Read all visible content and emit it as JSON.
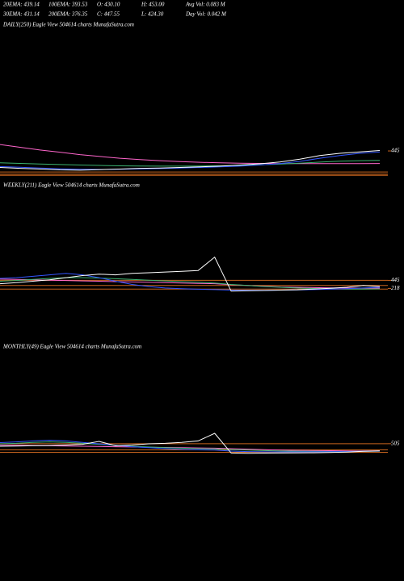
{
  "header": {
    "stats": [
      [
        "20EMA: 439.14",
        "100EMA: 393.53",
        "O: 430.10",
        "H: 453.00",
        "Avg Vol: 0.083 M"
      ],
      [
        "30EMA: 431.14",
        "200EMA: 376.35",
        "C: 447.55",
        "L: 424.30",
        "Day Vol: 0.042 M"
      ]
    ]
  },
  "chart_data": [
    {
      "type": "line",
      "title": "DAILY(250) Eagle  View  504614  charts MunafaSutra.com",
      "ylim": [
        300,
        520
      ],
      "yticks": [
        445
      ],
      "levels": [
        330,
        318,
        312
      ],
      "series": [
        {
          "color": "#ff66cc",
          "values": [
            480,
            465,
            450,
            438,
            425,
            415,
            405,
            398,
            392,
            387,
            383,
            380,
            378,
            377,
            376,
            376,
            376,
            376,
            376,
            376.35
          ]
        },
        {
          "color": "#3cb371",
          "values": [
            380,
            377,
            374,
            371,
            368,
            366,
            364,
            363,
            362,
            362,
            363,
            364,
            366,
            369,
            373,
            378,
            384,
            389,
            392,
            393.53
          ]
        },
        {
          "color": "#3355ff",
          "values": [
            360,
            356,
            352,
            348,
            345,
            344,
            345,
            347,
            349,
            352,
            355,
            358,
            362,
            368,
            376,
            388,
            405,
            420,
            432,
            439.14
          ]
        },
        {
          "color": "#ffffff",
          "values": [
            355,
            350,
            346,
            342,
            340,
            343,
            346,
            350,
            352,
            355,
            358,
            362,
            368,
            375,
            385,
            400,
            420,
            432,
            440,
            447.55
          ]
        }
      ]
    },
    {
      "type": "line",
      "title": "WEEKLY(211) Eagle  View  504614  charts MunafaSutra.com",
      "ylim": [
        0,
        1500
      ],
      "yticks": [
        445,
        218
      ],
      "levels": [
        445,
        300,
        200
      ],
      "series": [
        {
          "color": "#ff66cc",
          "values": [
            480,
            470,
            460,
            450,
            440,
            430,
            420,
            410,
            400,
            390,
            380,
            370,
            360,
            350,
            320,
            300,
            280,
            260,
            250,
            240,
            235,
            230,
            228,
            226
          ]
        },
        {
          "color": "#3cb371",
          "values": [
            420,
            440,
            470,
            500,
            520,
            520,
            510,
            490,
            470,
            450,
            430,
            410,
            390,
            370,
            330,
            300,
            270,
            250,
            230,
            215,
            205,
            200,
            200,
            205
          ]
        },
        {
          "color": "#3355ff",
          "values": [
            500,
            520,
            560,
            600,
            640,
            600,
            520,
            420,
            330,
            270,
            230,
            210,
            195,
            185,
            170,
            165,
            165,
            170,
            175,
            185,
            195,
            210,
            230,
            250
          ]
        },
        {
          "color": "#ffffff",
          "values": [
            350,
            380,
            420,
            460,
            520,
            580,
            620,
            600,
            640,
            660,
            680,
            700,
            720,
            1100,
            140,
            150,
            160,
            170,
            180,
            200,
            220,
            250,
            300,
            270
          ]
        }
      ]
    },
    {
      "type": "line",
      "title": "MONTHLY(49) Eagle  View  504614  charts MunafaSutra.com",
      "ylim": [
        0,
        1500
      ],
      "yticks": [
        505
      ],
      "levels": [
        505,
        250,
        150
      ],
      "series": [
        {
          "color": "#ff66cc",
          "values": [
            450,
            440,
            430,
            420,
            410,
            400,
            390,
            380,
            370,
            360,
            350,
            340,
            330,
            320,
            300,
            280,
            260,
            240,
            230,
            220,
            215,
            210,
            208,
            206
          ]
        },
        {
          "color": "#3cb371",
          "values": [
            500,
            520,
            560,
            580,
            560,
            520,
            480,
            440,
            400,
            370,
            340,
            320,
            300,
            290,
            260,
            240,
            220,
            205,
            195,
            190,
            185,
            185,
            190,
            195
          ]
        },
        {
          "color": "#3355ff",
          "values": [
            550,
            580,
            620,
            650,
            620,
            560,
            500,
            440,
            380,
            340,
            300,
            270,
            250,
            240,
            200,
            180,
            170,
            165,
            165,
            170,
            175,
            180,
            190,
            200
          ]
        },
        {
          "color": "#ffffff",
          "values": [
            400,
            410,
            420,
            430,
            450,
            480,
            600,
            420,
            450,
            500,
            520,
            560,
            620,
            933,
            120,
            110,
            115,
            120,
            125,
            130,
            140,
            160,
            190,
            210
          ]
        }
      ]
    }
  ]
}
